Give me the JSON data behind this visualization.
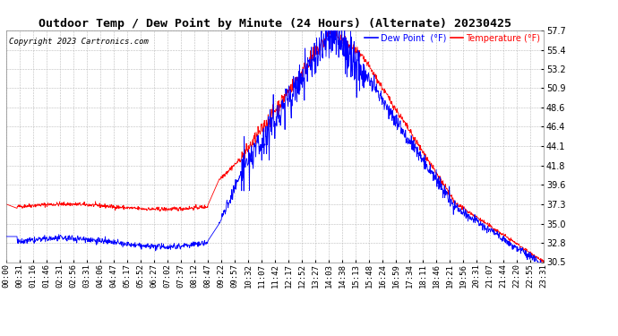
{
  "title": "Outdoor Temp / Dew Point by Minute (24 Hours) (Alternate) 20230425",
  "copyright": "Copyright 2023 Cartronics.com",
  "legend_dew": "Dew Point  (°F)",
  "legend_temp": "Temperature (°F)",
  "dew_color": "#0000ff",
  "temp_color": "#ff0000",
  "ylim": [
    30.5,
    57.7
  ],
  "yticks": [
    30.5,
    32.8,
    35.0,
    37.3,
    39.6,
    41.8,
    44.1,
    46.4,
    48.6,
    50.9,
    53.2,
    55.4,
    57.7
  ],
  "bg_color": "#ffffff",
  "grid_color": "#bbbbbb",
  "title_fontsize": 9.5,
  "copyright_fontsize": 6.5,
  "tick_fontsize": 7,
  "x_tick_labels": [
    "00:00",
    "00:31",
    "01:16",
    "01:46",
    "02:31",
    "02:56",
    "03:31",
    "04:06",
    "04:47",
    "05:17",
    "05:52",
    "06:27",
    "07:02",
    "07:37",
    "08:12",
    "08:47",
    "09:22",
    "09:57",
    "10:32",
    "11:07",
    "11:42",
    "12:17",
    "12:52",
    "13:27",
    "14:03",
    "14:38",
    "15:13",
    "15:48",
    "16:24",
    "16:59",
    "17:34",
    "18:11",
    "18:46",
    "19:21",
    "19:56",
    "20:31",
    "21:07",
    "21:44",
    "22:20",
    "22:55",
    "23:31"
  ]
}
